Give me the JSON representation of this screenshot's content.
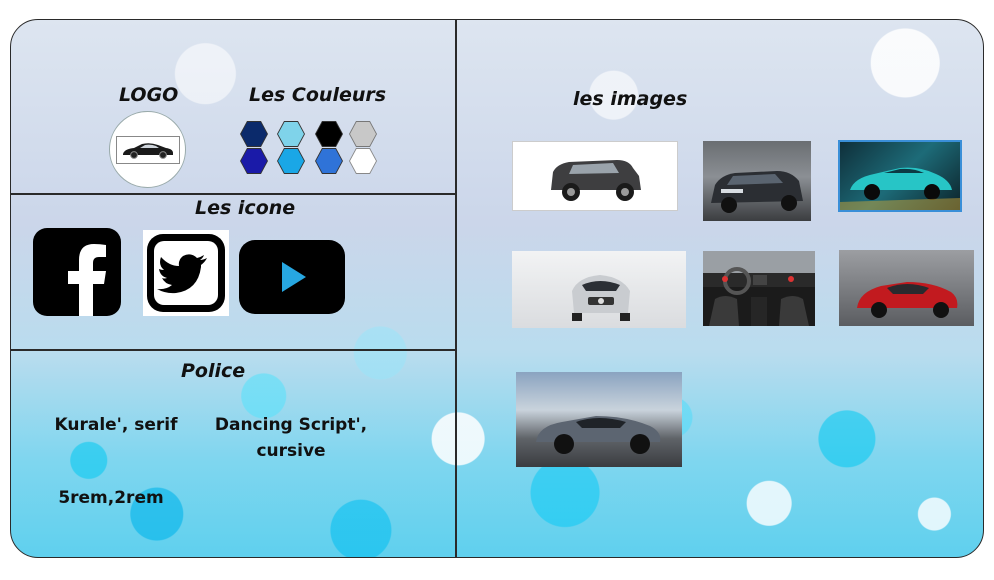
{
  "sections": {
    "logo": {
      "title": "LOGO"
    },
    "colors": {
      "title": "Les Couleurs",
      "swatches": [
        "#0b2a6b",
        "#7fd3ea",
        "#000000",
        "#c8c8c8",
        "#1a1aa8",
        "#1aa7e6",
        "#2f73d8",
        "#ffffff"
      ]
    },
    "icons": {
      "title": "Les icone",
      "items": [
        "facebook-icon",
        "twitter-icon",
        "youtube-icon"
      ]
    },
    "police": {
      "title": "Police",
      "font1": "Kurale', serif",
      "font2_line1": "Dancing Script',",
      "font2_line2": "cursive",
      "sizes": "5rem,2rem"
    },
    "images": {
      "title": "les images",
      "items": [
        "jeep-suv-photo",
        "audi-sedan-photo",
        "teal-supercar-photo",
        "mercedes-hatchback-photo",
        "car-interior-photo",
        "red-ferrari-photo",
        "bmw-coupe-photo"
      ]
    }
  },
  "colors": {
    "border": "#2a2a2a",
    "text": "#111111"
  }
}
